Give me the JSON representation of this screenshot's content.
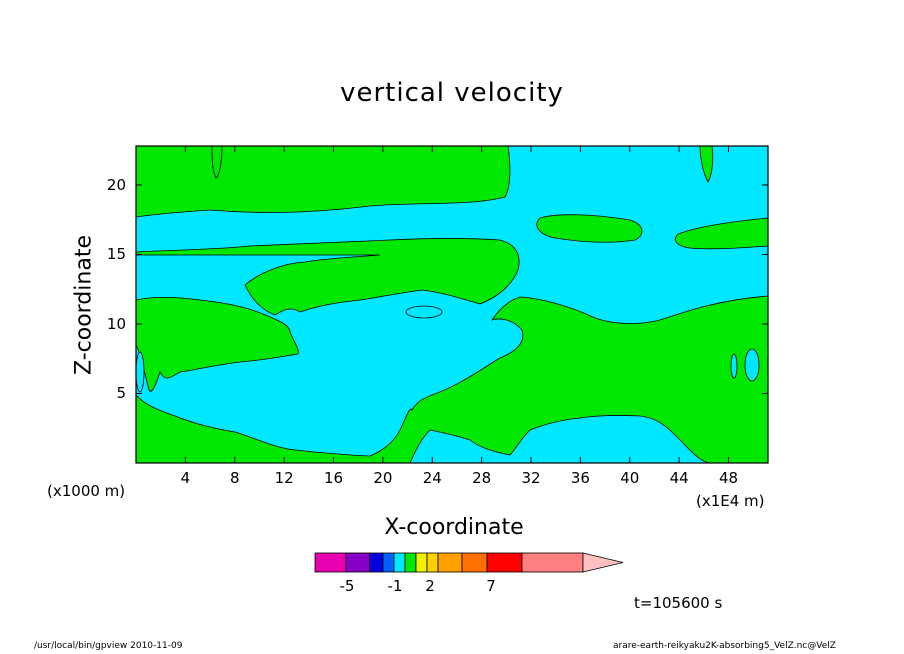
{
  "chart_data": {
    "type": "heatmap",
    "title": "vertical velocity",
    "xlabel": "X-coordinate",
    "ylabel": "Z-coordinate",
    "x_unit": "(x1000 m)",
    "x_scale_note": "(x1E4 m)",
    "x_ticks": [
      "4",
      "8",
      "12",
      "16",
      "20",
      "24",
      "28",
      "32",
      "36",
      "40",
      "44",
      "48"
    ],
    "y_ticks": [
      "5",
      "10",
      "15",
      "20"
    ],
    "xlim": [
      0,
      51.2
    ],
    "ylim": [
      0,
      22.8
    ],
    "colorbar": {
      "labels": [
        "-5",
        "-1",
        "2",
        "7"
      ],
      "colors": [
        "#e800b0",
        "#8800c8",
        "#0000e0",
        "#0060ff",
        "#00e8ff",
        "#00e800",
        "#f0f000",
        "#ffd000",
        "#ffa000",
        "#ff7000",
        "#ff0000",
        "#ff8080",
        "#ffc0c0"
      ]
    },
    "colors": {
      "positive_region": "#00e800",
      "negative_region": "#00e8ff"
    },
    "time_label": "t=105600 s"
  },
  "footer": {
    "left": "/usr/local/bin/gpview  2010-11-09",
    "right": "arare-earth-reikyaku2K-absorbing5_VelZ.nc@VelZ"
  }
}
